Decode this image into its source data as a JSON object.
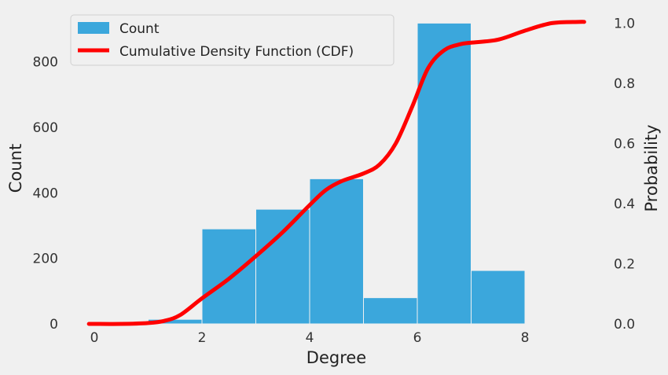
{
  "chart_data": {
    "type": "bar",
    "title": "",
    "xlabel": "Degree",
    "ylabel": "Count",
    "y2label": "Probability",
    "xlim": [
      -0.2,
      9.2
    ],
    "ylim": [
      0,
      930
    ],
    "y2lim": [
      0,
      1.0
    ],
    "xticks": [
      0,
      2,
      4,
      6,
      8
    ],
    "yticks": [
      0,
      200,
      400,
      600,
      800
    ],
    "y2ticks": [
      0.0,
      0.2,
      0.4,
      0.6,
      0.8,
      1.0
    ],
    "grid": false,
    "legend_position": "top-left",
    "histogram": {
      "name": "Count",
      "color": "#3ba7dc",
      "bins": [
        {
          "start": 1,
          "end": 2,
          "value": 14
        },
        {
          "start": 2,
          "end": 3,
          "value": 290
        },
        {
          "start": 3,
          "end": 4,
          "value": 350
        },
        {
          "start": 4,
          "end": 5,
          "value": 443
        },
        {
          "start": 5,
          "end": 6,
          "value": 80
        },
        {
          "start": 6,
          "end": 7,
          "value": 918
        },
        {
          "start": 7,
          "end": 8,
          "value": 163
        }
      ]
    },
    "cdf": {
      "name": "Cumulative Density Function (CDF)",
      "color": "#ff0000",
      "x": [
        -0.1,
        0.5,
        1.0,
        1.3,
        1.6,
        2.0,
        2.5,
        3.0,
        3.5,
        4.0,
        4.3,
        4.6,
        5.0,
        5.3,
        5.6,
        5.9,
        6.2,
        6.5,
        6.8,
        7.0,
        7.5,
        8.0,
        8.5,
        9.0,
        9.1
      ],
      "y": [
        0.0,
        0.0,
        0.003,
        0.01,
        0.03,
        0.085,
        0.15,
        0.225,
        0.305,
        0.395,
        0.445,
        0.475,
        0.5,
        0.53,
        0.6,
        0.72,
        0.85,
        0.91,
        0.93,
        0.935,
        0.945,
        0.975,
        1.0,
        1.004,
        1.004
      ]
    }
  }
}
